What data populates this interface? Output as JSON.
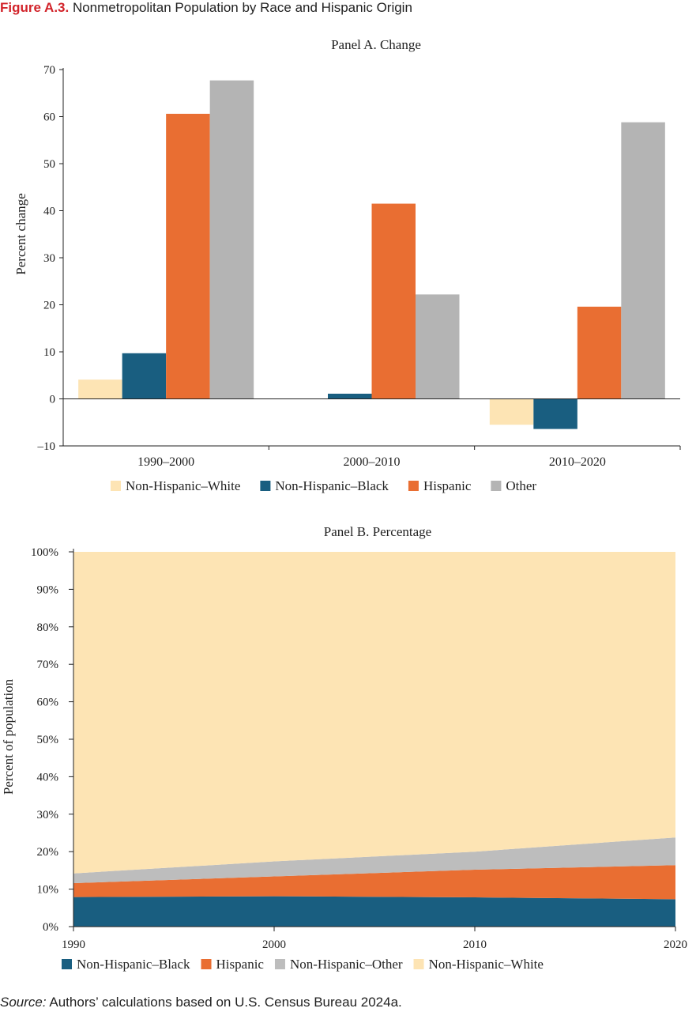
{
  "figure": {
    "number": "Figure A.3.",
    "title": "Nonmetropolitan Population by Race and Hispanic Origin"
  },
  "source": {
    "label": "Source:",
    "text": "Authors’ calculations based on U.S. Census Bureau 2024a."
  },
  "colors": {
    "white": "#fde4b4",
    "black": "#195e80",
    "hispanic": "#e96e32",
    "other": "#b4b4b4"
  },
  "chart_data": [
    {
      "type": "bar",
      "title": "Panel A. Change",
      "ylabel": "Percent change",
      "xlabel": "",
      "categories": [
        "1990–2000",
        "2000–2010",
        "2010–2020"
      ],
      "series": [
        {
          "name": "Non-Hispanic–White",
          "values": [
            4.1,
            0.0,
            -5.5
          ],
          "color": "#fde4b4"
        },
        {
          "name": "Non-Hispanic–Black",
          "values": [
            9.7,
            1.1,
            -6.4
          ],
          "color": "#195e80"
        },
        {
          "name": "Hispanic",
          "values": [
            60.6,
            41.5,
            19.6
          ],
          "color": "#e96e32"
        },
        {
          "name": "Other",
          "values": [
            67.7,
            22.2,
            58.8
          ],
          "color": "#b4b4b4"
        }
      ],
      "ylim": [
        -10,
        70
      ],
      "yticks": [
        -10,
        0,
        10,
        20,
        30,
        40,
        50,
        60,
        70
      ],
      "ytick_labels": [
        "–10",
        "0",
        "10",
        "20",
        "30",
        "40",
        "50",
        "60",
        "70"
      ],
      "grid": false,
      "legend": "bottom"
    },
    {
      "type": "area",
      "stacked": true,
      "title": "Panel B. Percentage",
      "ylabel": "Percent of population",
      "xlabel": "",
      "x": [
        1990,
        2000,
        2010,
        2020
      ],
      "series": [
        {
          "name": "Non-Hispanic–Black",
          "values": [
            7.9,
            8.1,
            7.8,
            7.3
          ],
          "color": "#195e80"
        },
        {
          "name": "Hispanic",
          "values": [
            3.7,
            5.3,
            7.4,
            9.1
          ],
          "color": "#e96e32"
        },
        {
          "name": "Non-Hispanic–Other",
          "values": [
            2.6,
            4.0,
            4.8,
            7.4
          ],
          "color": "#bdbdbd"
        },
        {
          "name": "Non-Hispanic–White",
          "values": [
            85.8,
            82.6,
            80.0,
            76.2
          ],
          "color": "#fde4b4"
        }
      ],
      "ylim": [
        0,
        100
      ],
      "yticks": [
        0,
        10,
        20,
        30,
        40,
        50,
        60,
        70,
        80,
        90,
        100
      ],
      "ytick_labels": [
        "0%",
        "10%",
        "20%",
        "30%",
        "40%",
        "50%",
        "60%",
        "70%",
        "80%",
        "90%",
        "100%"
      ],
      "xtick_labels": [
        "1990",
        "2000",
        "2010",
        "2020"
      ],
      "grid": false,
      "legend": "bottom"
    }
  ]
}
